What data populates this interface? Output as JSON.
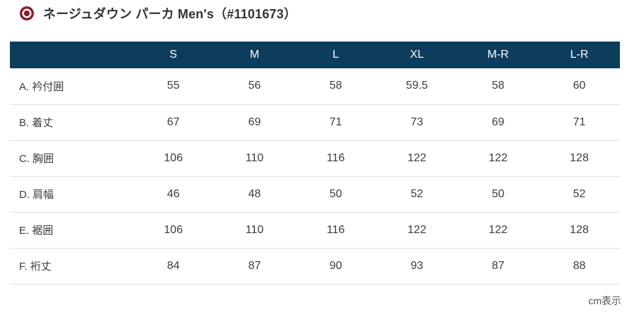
{
  "page": {
    "title": "ネージュダウン パーカ Men's（#1101673）",
    "unit_note": "cm表示"
  },
  "colors": {
    "header_bg": "#0d3d5c",
    "header_text": "#ffffff",
    "accent_red": "#8b1c2b",
    "row_border": "#e1e1e1",
    "body_text": "#3c3c3c",
    "muted_text": "#555555"
  },
  "size_chart": {
    "corner_label": "",
    "columns": [
      "S",
      "M",
      "L",
      "XL",
      "M-R",
      "L-R"
    ],
    "rows": [
      {
        "label": "A. 衿付囲",
        "values": [
          "55",
          "56",
          "58",
          "59.5",
          "58",
          "60"
        ]
      },
      {
        "label": "B. 着丈",
        "values": [
          "67",
          "69",
          "71",
          "73",
          "69",
          "71"
        ]
      },
      {
        "label": "C. 胸囲",
        "values": [
          "106",
          "110",
          "116",
          "122",
          "122",
          "128"
        ]
      },
      {
        "label": "D. 肩幅",
        "values": [
          "46",
          "48",
          "50",
          "52",
          "50",
          "52"
        ]
      },
      {
        "label": "E. 裾囲",
        "values": [
          "106",
          "110",
          "116",
          "122",
          "122",
          "128"
        ]
      },
      {
        "label": "F. 裄丈",
        "values": [
          "84",
          "87",
          "90",
          "93",
          "87",
          "88"
        ]
      }
    ]
  }
}
